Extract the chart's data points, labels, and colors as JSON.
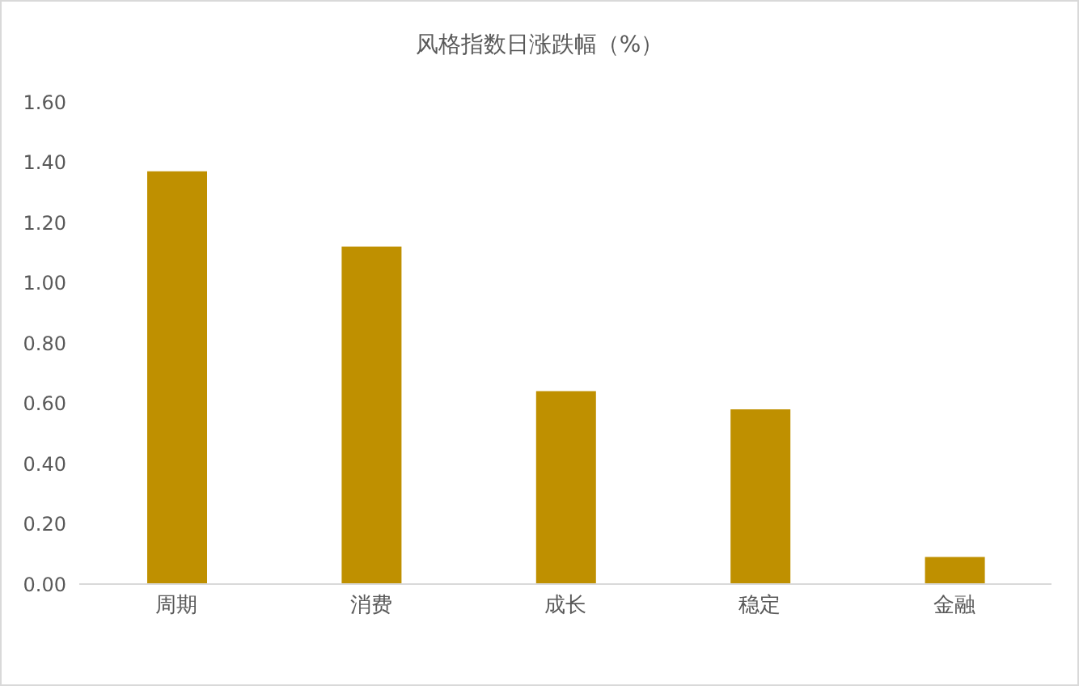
{
  "chart_data": {
    "type": "bar",
    "title": "风格指数日涨跌幅（%）",
    "categories": [
      "周期",
      "消费",
      "成长",
      "稳定",
      "金融"
    ],
    "values": [
      1.37,
      1.12,
      0.64,
      0.58,
      0.09
    ],
    "color": "#bf9000",
    "ylim": [
      0,
      1.6
    ],
    "yticks": [
      {
        "value": 0,
        "label": "0.00"
      },
      {
        "value": 0.2,
        "label": "0.20"
      },
      {
        "value": 0.4,
        "label": "0.40"
      },
      {
        "value": 0.6,
        "label": "0.60"
      },
      {
        "value": 0.8,
        "label": "0.80"
      },
      {
        "value": 1,
        "label": "1.00"
      },
      {
        "value": 1.2,
        "label": "1.20"
      },
      {
        "value": 1.4,
        "label": "1.40"
      },
      {
        "value": 1.6,
        "label": "1.60"
      }
    ],
    "grid": false,
    "legend": false
  }
}
